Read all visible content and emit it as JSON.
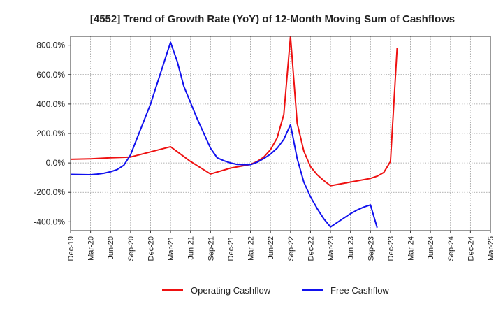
{
  "chart_data": {
    "type": "line",
    "title": "[4552]  Trend of Growth Rate (YoY) of 12-Month Moving Sum of Cashflows",
    "xlabel": "",
    "ylabel": "",
    "ylim": [
      -460,
      860
    ],
    "yticks": [
      800,
      600,
      400,
      200,
      0,
      -200,
      -400
    ],
    "ytick_labels": [
      "800.0%",
      "600.0%",
      "400.0%",
      "200.0%",
      "0.0%",
      "-200.0%",
      "-400.0%"
    ],
    "x_tick_labels": [
      "Dec-19",
      "Mar-20",
      "Jun-20",
      "Sep-20",
      "Dec-20",
      "Mar-21",
      "Jun-21",
      "Sep-21",
      "Dec-21",
      "Mar-22",
      "Jun-22",
      "Sep-22",
      "Dec-22",
      "Mar-23",
      "Jun-23",
      "Sep-23",
      "Dec-23",
      "Mar-24",
      "Jun-24",
      "Sep-24",
      "Dec-24",
      "Mar-25"
    ],
    "grid": true,
    "legend_position": "bottom",
    "series": [
      {
        "name": "Operating Cashflow",
        "color": "#ee1111",
        "points": [
          [
            "Dec-19",
            25
          ],
          [
            "Mar-20",
            28
          ],
          [
            "Jun-20",
            35
          ],
          [
            "Sep-20",
            40
          ],
          [
            "Dec-20",
            75
          ],
          [
            "Mar-21",
            110
          ],
          [
            "Jun-21",
            10
          ],
          [
            "Sep-21",
            -75
          ],
          [
            "Dec-21",
            -35
          ],
          [
            "Mar-22",
            -10
          ],
          [
            "Apr-22",
            10
          ],
          [
            "May-22",
            40
          ],
          [
            "Jun-22",
            90
          ],
          [
            "Jul-22",
            170
          ],
          [
            "Aug-22",
            330
          ],
          [
            "Sep-22",
            860
          ],
          [
            "Oct-22",
            270
          ],
          [
            "Nov-22",
            80
          ],
          [
            "Dec-22",
            -25
          ],
          [
            "Jan-23",
            -80
          ],
          [
            "Feb-23",
            -120
          ],
          [
            "Mar-23",
            -155
          ],
          [
            "Jun-23",
            -130
          ],
          [
            "Sep-23",
            -105
          ],
          [
            "Oct-23",
            -90
          ],
          [
            "Nov-23",
            -65
          ],
          [
            "Dec-23",
            10
          ],
          [
            "Jan-24",
            780
          ]
        ]
      },
      {
        "name": "Free Cashflow",
        "color": "#1111ee",
        "points": [
          [
            "Dec-19",
            -78
          ],
          [
            "Mar-20",
            -80
          ],
          [
            "Apr-20",
            -76
          ],
          [
            "May-20",
            -70
          ],
          [
            "Jun-20",
            -60
          ],
          [
            "Jul-20",
            -45
          ],
          [
            "Aug-20",
            -15
          ],
          [
            "Sep-20",
            55
          ],
          [
            "Dec-20",
            400
          ],
          [
            "Mar-21",
            820
          ],
          [
            "Apr-21",
            690
          ],
          [
            "May-21",
            520
          ],
          [
            "Jun-21",
            410
          ],
          [
            "Jul-21",
            300
          ],
          [
            "Aug-21",
            200
          ],
          [
            "Sep-21",
            100
          ],
          [
            "Oct-21",
            35
          ],
          [
            "Nov-21",
            15
          ],
          [
            "Dec-21",
            0
          ],
          [
            "Jan-22",
            -10
          ],
          [
            "Feb-22",
            -12
          ],
          [
            "Mar-22",
            -12
          ],
          [
            "Apr-22",
            5
          ],
          [
            "May-22",
            30
          ],
          [
            "Jun-22",
            60
          ],
          [
            "Jul-22",
            100
          ],
          [
            "Aug-22",
            160
          ],
          [
            "Sep-22",
            260
          ],
          [
            "Oct-22",
            30
          ],
          [
            "Nov-22",
            -130
          ],
          [
            "Dec-22",
            -230
          ],
          [
            "Jan-23",
            -310
          ],
          [
            "Feb-23",
            -380
          ],
          [
            "Mar-23",
            -435
          ],
          [
            "Apr-23",
            -405
          ],
          [
            "May-23",
            -375
          ],
          [
            "Jun-23",
            -345
          ],
          [
            "Jul-23",
            -320
          ],
          [
            "Aug-23",
            -300
          ],
          [
            "Sep-23",
            -285
          ],
          [
            "Oct-23",
            -440
          ]
        ]
      }
    ]
  }
}
